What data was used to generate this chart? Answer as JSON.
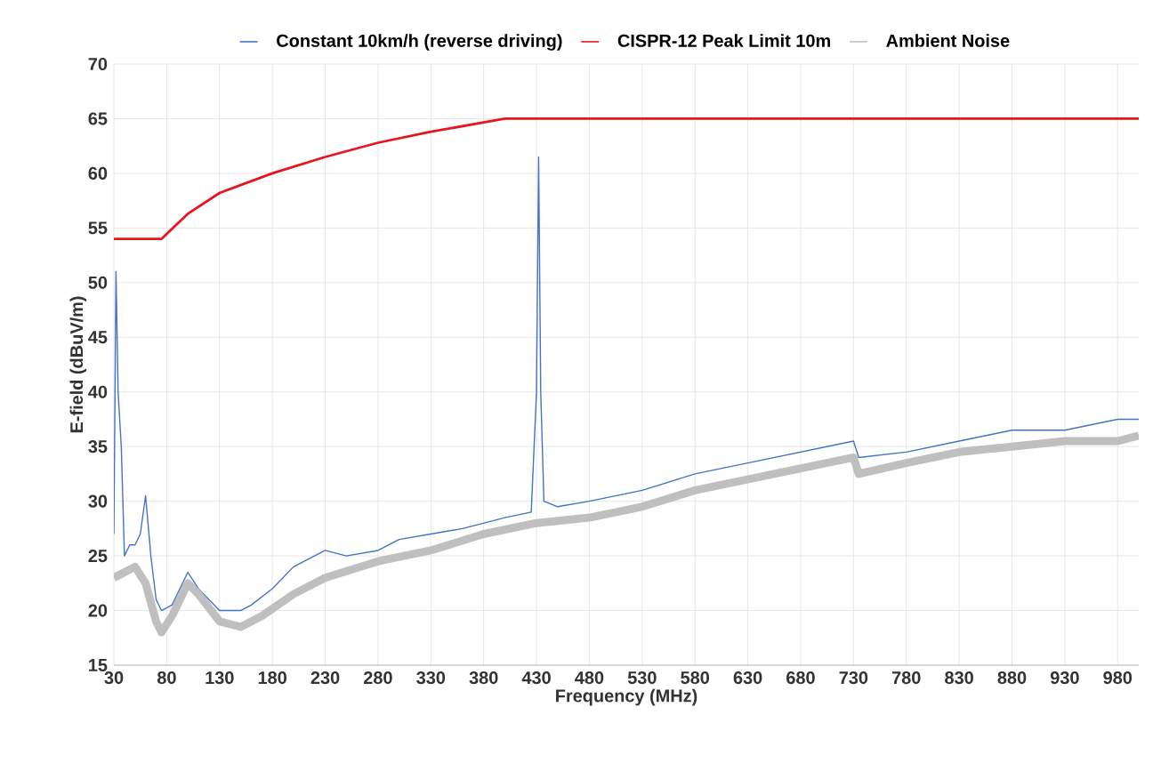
{
  "chart_data": {
    "type": "line",
    "xlabel": "Frequency (MHz)",
    "ylabel": "E-field (dBuV/m)",
    "xlim": [
      30,
      1000
    ],
    "ylim": [
      15,
      70
    ],
    "xticks": [
      30,
      80,
      130,
      180,
      230,
      280,
      330,
      380,
      430,
      480,
      530,
      580,
      630,
      680,
      730,
      780,
      830,
      880,
      930,
      980
    ],
    "yticks": [
      15,
      20,
      25,
      30,
      35,
      40,
      45,
      50,
      55,
      60,
      65,
      70
    ],
    "grid": true,
    "legend": "top",
    "marker": "none",
    "line_style": "solid",
    "series": [
      {
        "name": "Constant 10km/h (reverse driving)",
        "color": "#4472c4",
        "x": [
          30,
          32,
          34,
          37,
          40,
          45,
          50,
          55,
          60,
          65,
          70,
          75,
          85,
          100,
          110,
          120,
          130,
          140,
          150,
          160,
          180,
          200,
          230,
          250,
          280,
          300,
          330,
          360,
          400,
          425,
          430,
          432,
          434,
          437,
          450,
          480,
          530,
          580,
          630,
          680,
          730,
          735,
          780,
          830,
          880,
          930,
          980,
          1000
        ],
        "values": [
          27,
          51,
          40,
          35,
          25,
          26,
          26,
          27,
          30.5,
          25,
          21,
          20,
          20.5,
          23.5,
          22,
          21,
          20,
          20,
          20,
          20.5,
          22,
          24,
          25.5,
          25,
          25.5,
          26.5,
          27,
          27.5,
          28.5,
          29,
          40,
          61.5,
          40,
          30,
          29.5,
          30,
          31,
          32.5,
          33.5,
          34.5,
          35.5,
          34,
          34.5,
          35.5,
          36.5,
          36.5,
          37.5,
          37.5
        ]
      },
      {
        "name": "CISPR-12 Peak Limit 10m",
        "color": "#e8141e",
        "x": [
          30,
          75,
          100,
          130,
          180,
          230,
          280,
          330,
          400,
          1000
        ],
        "values": [
          54,
          54,
          56.3,
          58.2,
          60,
          61.5,
          62.8,
          63.8,
          65,
          65
        ]
      },
      {
        "name": "Ambient Noise",
        "color": "#bfbfbf",
        "x": [
          30,
          40,
          50,
          60,
          70,
          75,
          85,
          100,
          110,
          130,
          150,
          170,
          200,
          230,
          280,
          330,
          380,
          430,
          480,
          530,
          580,
          630,
          680,
          730,
          735,
          780,
          830,
          880,
          930,
          980,
          1000
        ],
        "values": [
          23,
          23.5,
          24,
          22.5,
          19,
          18,
          19.5,
          22.5,
          21.5,
          19,
          18.5,
          19.5,
          21.5,
          23,
          24.5,
          25.5,
          27,
          28,
          28.5,
          29.5,
          31,
          32,
          33,
          34,
          32.5,
          33.5,
          34.5,
          35,
          35.5,
          35.5,
          36
        ]
      }
    ]
  }
}
